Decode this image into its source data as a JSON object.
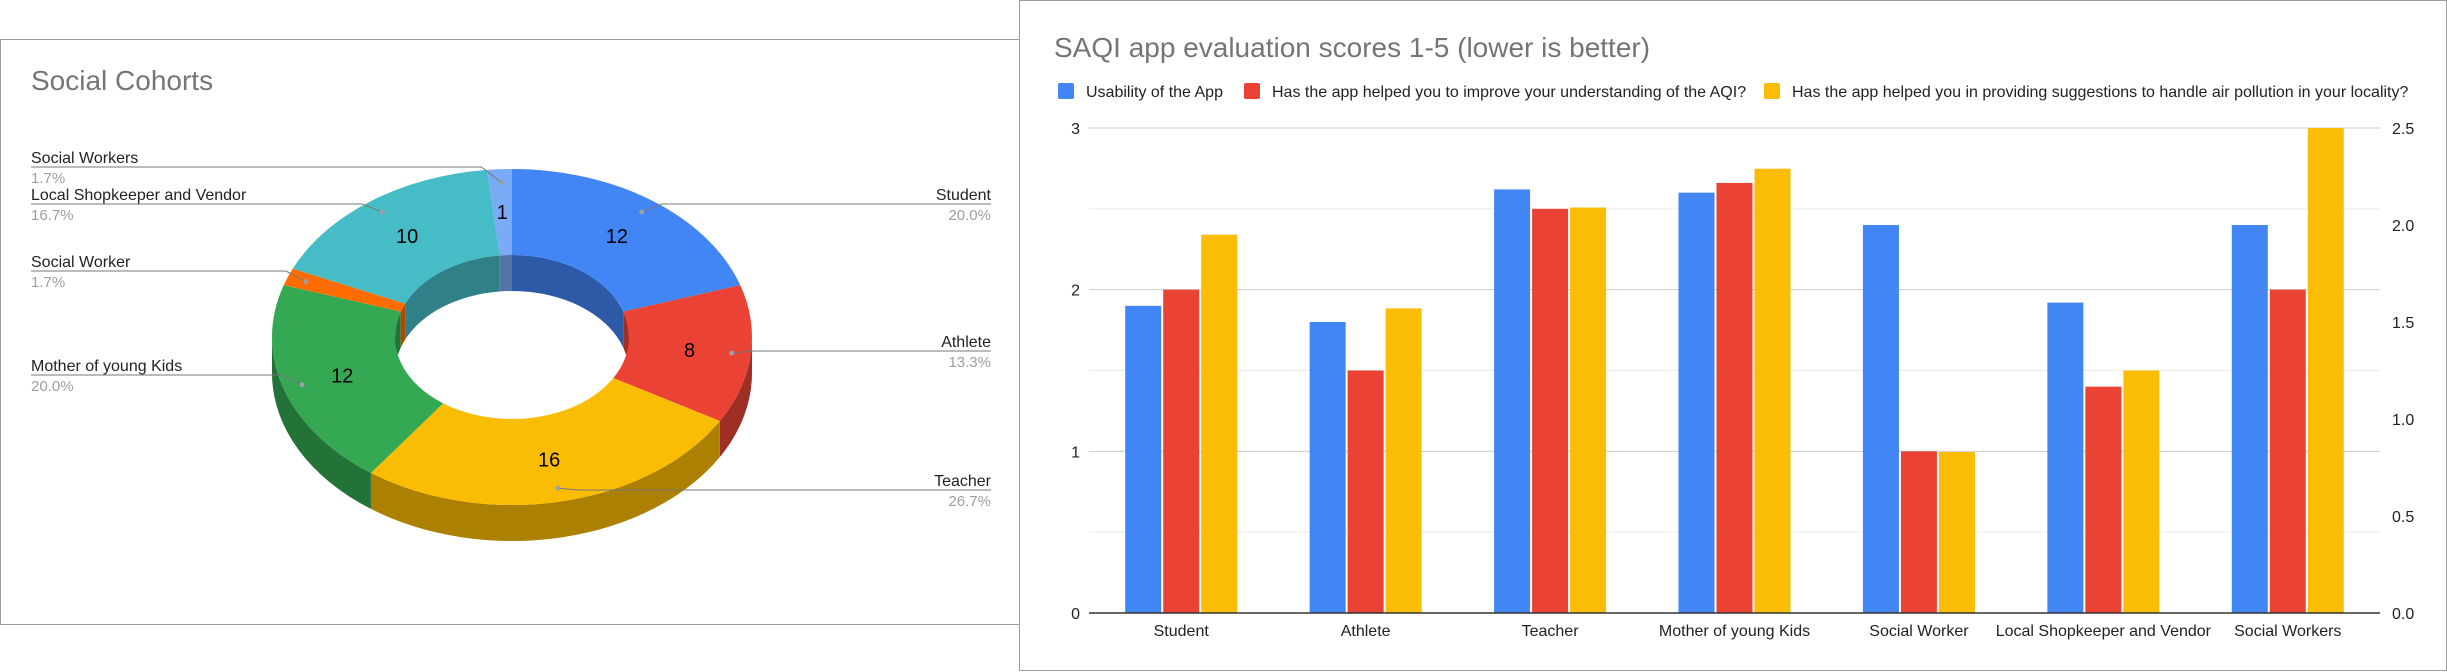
{
  "chart_data": [
    {
      "type": "pie",
      "title": "Social Cohorts",
      "donut": true,
      "three_d": true,
      "slices": [
        {
          "label": "Student",
          "value": 12,
          "percent": "20.0%",
          "color": "#4285f4"
        },
        {
          "label": "Athlete",
          "value": 8,
          "percent": "13.3%",
          "color": "#ea4335"
        },
        {
          "label": "Teacher",
          "value": 16,
          "percent": "26.7%",
          "color": "#fbbc04"
        },
        {
          "label": "Mother of young Kids",
          "value": 12,
          "percent": "20.0%",
          "color": "#34a853"
        },
        {
          "label": "Social Worker",
          "value": 1,
          "percent": "1.7%",
          "color": "#ff6d01"
        },
        {
          "label": "Local Shopkeeper and Vendor",
          "value": 10,
          "percent": "16.7%",
          "color": "#46bdc6"
        },
        {
          "label": "Social Workers",
          "value": 1,
          "percent": "1.7%",
          "color": "#7baaf7"
        }
      ]
    },
    {
      "type": "bar",
      "title": "SAQI app evaluation scores 1-5 (lower is better)",
      "categories": [
        "Student",
        "Athlete",
        "Teacher",
        "Mother of young Kids",
        "Social Worker",
        "Local Shopkeeper and Vendor",
        "Social Workers"
      ],
      "series": [
        {
          "name": "Usability of the App",
          "color": "#4285f4",
          "axis": "left",
          "values": [
            1.9,
            1.8,
            2.62,
            2.6,
            2.4,
            1.92,
            2.4
          ]
        },
        {
          "name": "Has the app helped you to improve your understanding of the AQI?",
          "color": "#ea4335",
          "axis": "left",
          "values": [
            2.0,
            1.5,
            2.5,
            2.66,
            1.0,
            1.4,
            2.0
          ]
        },
        {
          "name": "Has the app helped you in providing suggestions to handle air pollution in your locality?",
          "color": "#fbbc04",
          "axis": "right",
          "values": [
            1.95,
            1.57,
            2.09,
            2.29,
            0.83,
            1.25,
            2.5
          ]
        }
      ],
      "ylim_left": [
        0,
        3
      ],
      "ylim_right": [
        0,
        2.5
      ],
      "yticks_left": [
        "0",
        "1",
        "2",
        "3"
      ],
      "yticks_right": [
        "0.0",
        "0.5",
        "1.0",
        "1.5",
        "2.0",
        "2.5"
      ],
      "legend": "top",
      "grid": true
    }
  ]
}
